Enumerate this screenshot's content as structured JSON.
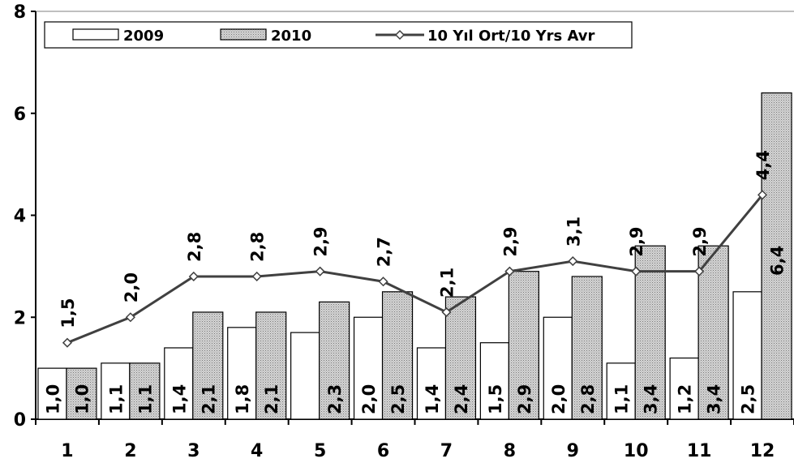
{
  "chart_data": {
    "type": "bar",
    "title": "",
    "xlabel": "",
    "ylabel": "",
    "categories": [
      "1",
      "2",
      "3",
      "4",
      "5",
      "6",
      "7",
      "8",
      "9",
      "10",
      "11",
      "12"
    ],
    "ylim": [
      0,
      8
    ],
    "yticks": [
      "0",
      "2",
      "4",
      "6",
      "8"
    ],
    "grid": false,
    "legend_position": "top",
    "series": [
      {
        "name": "2009",
        "kind": "bar",
        "color": "#ffffff",
        "values": [
          1.0,
          1.1,
          1.4,
          1.8,
          1.7,
          2.0,
          1.4,
          1.5,
          2.0,
          1.1,
          1.2,
          2.5
        ],
        "labels": [
          "1,0",
          "1,1",
          "1,4",
          "1,8",
          "",
          "2,0",
          "1,4",
          "1,5",
          "2,0",
          "1,1",
          "1,2",
          "2,5"
        ]
      },
      {
        "name": "2010",
        "kind": "bar",
        "color": "#c8c8c8",
        "values": [
          1.0,
          1.1,
          2.1,
          2.1,
          2.3,
          2.5,
          2.4,
          2.9,
          2.8,
          3.4,
          3.4,
          6.4
        ],
        "labels": [
          "1,0",
          "1,1",
          "2,1",
          "2,1",
          "2,3",
          "2,5",
          "2,4",
          "2,9",
          "2,8",
          "3,4",
          "3,4",
          "6,4"
        ]
      },
      {
        "name": "10 Yıl Ort/10 Yrs Avr",
        "kind": "line",
        "color": "#404040",
        "values": [
          1.5,
          2.0,
          2.8,
          2.8,
          2.9,
          2.7,
          2.1,
          2.9,
          3.1,
          2.9,
          2.9,
          4.4
        ],
        "labels": [
          "1,5",
          "2,0",
          "2,8",
          "2,8",
          "2,9",
          "2,7",
          "2,1",
          "2,9",
          "3,1",
          "2,9",
          "2,9",
          "4,4"
        ]
      }
    ]
  }
}
